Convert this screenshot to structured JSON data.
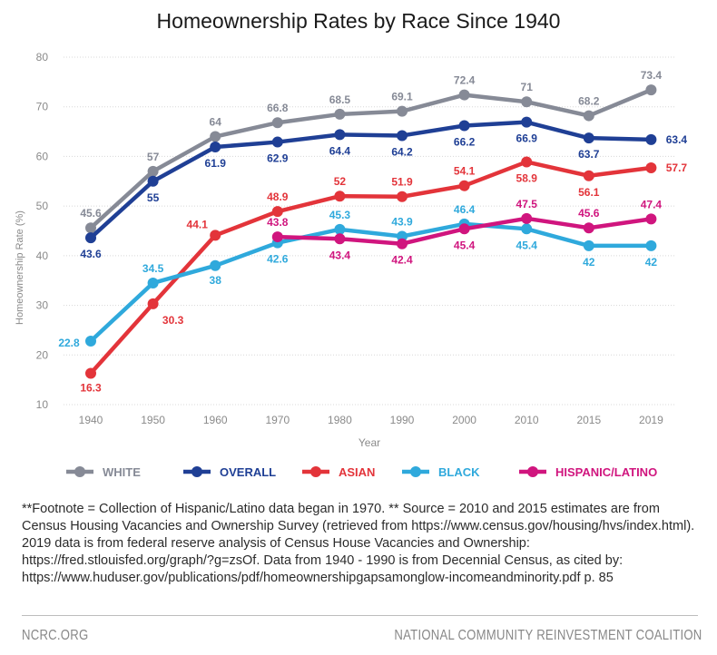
{
  "chart_data": {
    "type": "line",
    "title": "Homeownership Rates by Race Since 1940",
    "xlabel": "Year",
    "ylabel": "Homeownership Rate (%)",
    "ylim": [
      10,
      80
    ],
    "yticks": [
      10,
      20,
      30,
      40,
      50,
      60,
      70,
      80
    ],
    "categories": [
      "1940",
      "1950",
      "1960",
      "1970",
      "1980",
      "1990",
      "2000",
      "2010",
      "2015",
      "2019"
    ],
    "grid": "horizontal",
    "legend": "bottom",
    "series": [
      {
        "name": "WHITE",
        "color": "#868a96",
        "values": [
          45.6,
          57,
          64,
          66.8,
          68.5,
          69.1,
          72.4,
          71,
          68.2,
          73.4
        ]
      },
      {
        "name": "OVERALL",
        "color": "#1f3f95",
        "values": [
          43.6,
          55,
          61.9,
          62.9,
          64.4,
          64.2,
          66.2,
          66.9,
          63.7,
          63.4
        ]
      },
      {
        "name": "ASIAN",
        "color": "#e3343a",
        "values": [
          16.3,
          30.3,
          44.1,
          48.9,
          52,
          51.9,
          54.1,
          58.9,
          56.1,
          57.7
        ]
      },
      {
        "name": "BLACK",
        "color": "#2fa9dc",
        "values": [
          22.8,
          34.5,
          38,
          42.6,
          45.3,
          43.9,
          46.4,
          45.4,
          42,
          42
        ]
      },
      {
        "name": "HISPANIC/LATINO",
        "color": "#d0157e",
        "values": [
          null,
          null,
          null,
          43.8,
          43.4,
          42.4,
          45.4,
          47.5,
          45.6,
          47.4
        ]
      }
    ]
  },
  "footnote": "**Footnote = Collection of Hispanic/Latino data began in 1970. ** Source = 2010 and 2015 estimates are from Census Housing Vacancies and Ownership Survey (retrieved from https://www.census.gov/housing/hvs/index.html). 2019 data is from federal reserve analysis of Census House Vacancies and Ownership: https://fred.stlouisfed.org/graph/?g=zsOf. Data from 1940 - 1990 is from Decennial Census, as cited by: https://www.huduser.gov/publications/pdf/homeownershipgapsamonglow-incomeandminority.pdf p. 85",
  "footer": {
    "left": "NCRC.ORG",
    "right": "NATIONAL COMMUNITY REINVESTMENT COALITION"
  }
}
